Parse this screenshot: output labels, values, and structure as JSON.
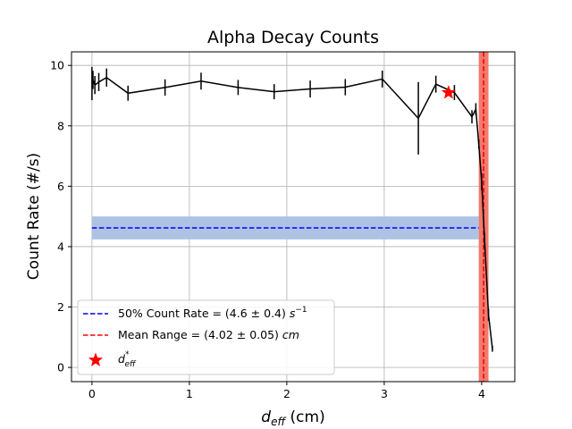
{
  "chart_data": {
    "type": "line",
    "title": "Alpha Decay Counts",
    "xlabel_base": "d",
    "xlabel_sub": "eff",
    "xlabel_unit": " (cm)",
    "ylabel": "Count Rate (#/s)",
    "xlim": [
      -0.21,
      4.34
    ],
    "ylim": [
      -0.47,
      10.45
    ],
    "xticks": [
      0,
      1,
      2,
      3,
      4
    ],
    "yticks": [
      0,
      2,
      4,
      6,
      8,
      10
    ],
    "grid": true,
    "legend_position": "lower-left",
    "series": [
      {
        "style": "line-with-errorbars",
        "color": "#000000",
        "x": [
          0.0,
          0.01,
          0.03,
          0.07,
          0.15,
          0.37,
          0.75,
          1.12,
          1.5,
          1.87,
          2.24,
          2.6,
          2.98,
          3.35,
          3.53,
          3.72,
          3.9,
          3.94,
          3.97,
          4.0,
          4.03,
          4.07,
          4.11
        ],
        "y": [
          9.4,
          9.52,
          9.35,
          9.45,
          9.6,
          9.08,
          9.27,
          9.48,
          9.27,
          9.13,
          9.22,
          9.28,
          9.55,
          8.25,
          9.38,
          9.1,
          8.3,
          8.55,
          7.4,
          6.15,
          4.2,
          1.75,
          0.62
        ],
        "yerr": [
          0.55,
          0.3,
          0.3,
          0.3,
          0.3,
          0.25,
          0.27,
          0.28,
          0.25,
          0.25,
          0.28,
          0.27,
          0.28,
          1.2,
          0.28,
          0.25,
          0.22,
          0.2,
          0.15,
          0.28,
          0.25,
          0.2,
          0.1
        ]
      }
    ],
    "fifty_percent": {
      "value": 4.62,
      "error": 0.38,
      "x_range": [
        0.0,
        3.97
      ],
      "line_color": "#0000ff",
      "band_color": "#aec3e4"
    },
    "mean_range": {
      "value": 4.02,
      "error": 0.05,
      "line_color": "#ff0000",
      "band_color": "#f17a6e"
    },
    "d_eff_star": {
      "x": 3.66,
      "y": 9.1,
      "color": "#ff0000"
    },
    "legend": [
      {
        "prefix": "50% Count Rate = (4.6 ± 0.4) ",
        "unit_base": "s",
        "unit_sup": "−1",
        "unit_sub": ""
      },
      {
        "prefix": "Mean Range = (4.02 ± 0.05) ",
        "unit_base": "cm",
        "unit_sup": "",
        "unit_sub": ""
      },
      {
        "prefix": "",
        "unit_base": "d",
        "unit_sup": "*",
        "unit_sub": "eff"
      }
    ]
  }
}
